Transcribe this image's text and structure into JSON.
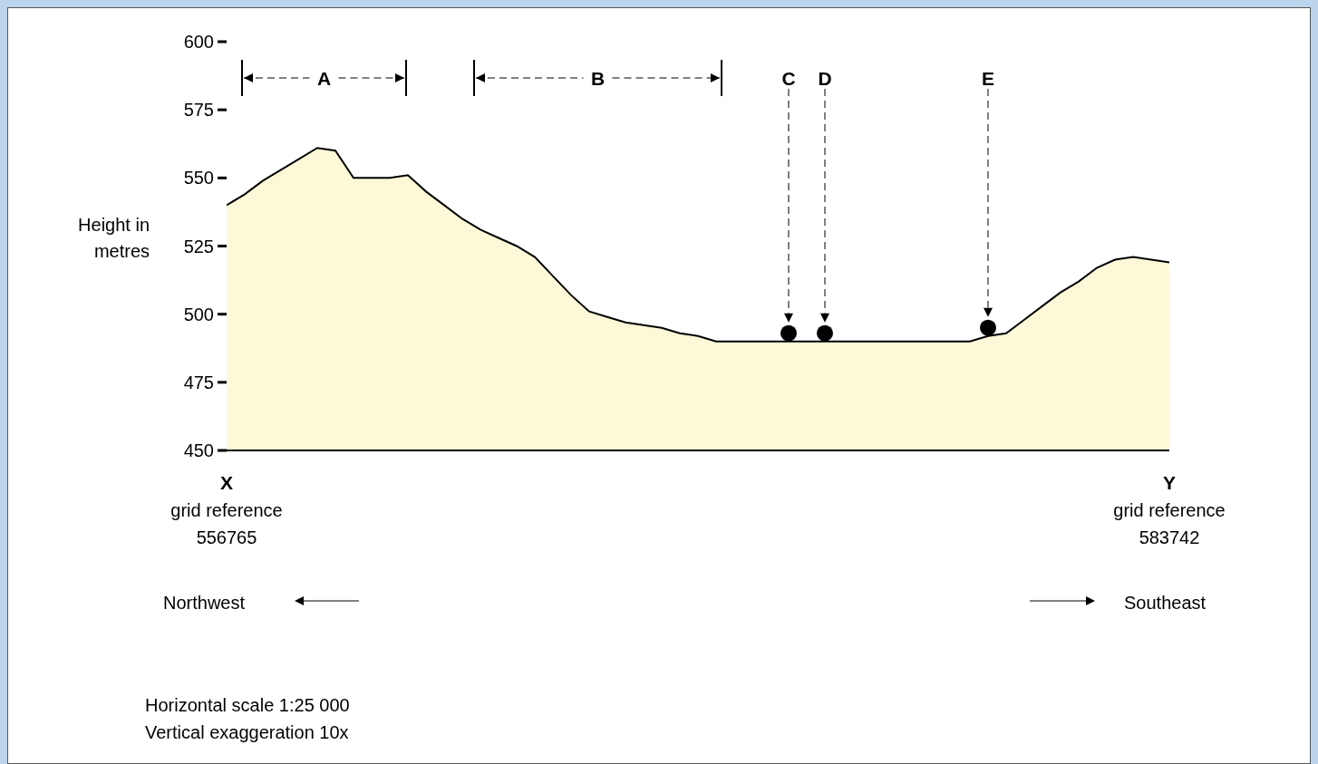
{
  "chart_data": {
    "type": "area",
    "ylabel": "Height in metres",
    "categories": [
      "X",
      null,
      null,
      null,
      null,
      null,
      null,
      null,
      null,
      null,
      null,
      null,
      null,
      null,
      null,
      null,
      null,
      null,
      null,
      null,
      null,
      null,
      null,
      null,
      null,
      null,
      null,
      null,
      null,
      null,
      null,
      null,
      null,
      null,
      null,
      null,
      null,
      null,
      null,
      null,
      null,
      null,
      null,
      null,
      null,
      null,
      null,
      null,
      null,
      null,
      null,
      null,
      "Y"
    ],
    "series": [
      {
        "color": "#fdf8d8",
        "values": [
          540,
          544,
          549,
          553,
          557,
          561,
          560,
          550,
          550,
          550,
          551,
          545,
          540,
          535,
          531,
          528,
          525,
          521,
          514,
          507,
          501,
          499,
          497,
          496,
          495,
          493,
          492,
          490,
          490,
          490,
          490,
          490,
          490,
          490,
          490,
          490,
          490,
          490,
          490,
          490,
          490,
          490,
          492,
          493,
          498,
          503,
          508,
          512,
          517,
          520,
          521,
          520,
          519
        ]
      },
      {
        "type": "scatter",
        "color": "#000000",
        "values": [
          null,
          null,
          null,
          null,
          null,
          null,
          null,
          null,
          null,
          null,
          null,
          null,
          null,
          null,
          null,
          null,
          null,
          null,
          null,
          null,
          null,
          null,
          null,
          null,
          null,
          null,
          null,
          null,
          null,
          null,
          null,
          493,
          null,
          493,
          null,
          null,
          null,
          null,
          null,
          null,
          null,
          null,
          495,
          null,
          null,
          null,
          null,
          null,
          null,
          null,
          null,
          null,
          null
        ]
      }
    ],
    "ylim": [
      450,
      600
    ],
    "yticks": [
      450,
      475,
      500,
      525,
      550,
      575,
      600
    ],
    "annotations": [
      "A",
      "B",
      "C",
      "D",
      "E",
      "grid reference 556765",
      "grid reference 583742",
      "Northwest",
      "Southeast",
      "Horizontal scale 1:25 000",
      "Vertical exaggeration 10x"
    ]
  }
}
